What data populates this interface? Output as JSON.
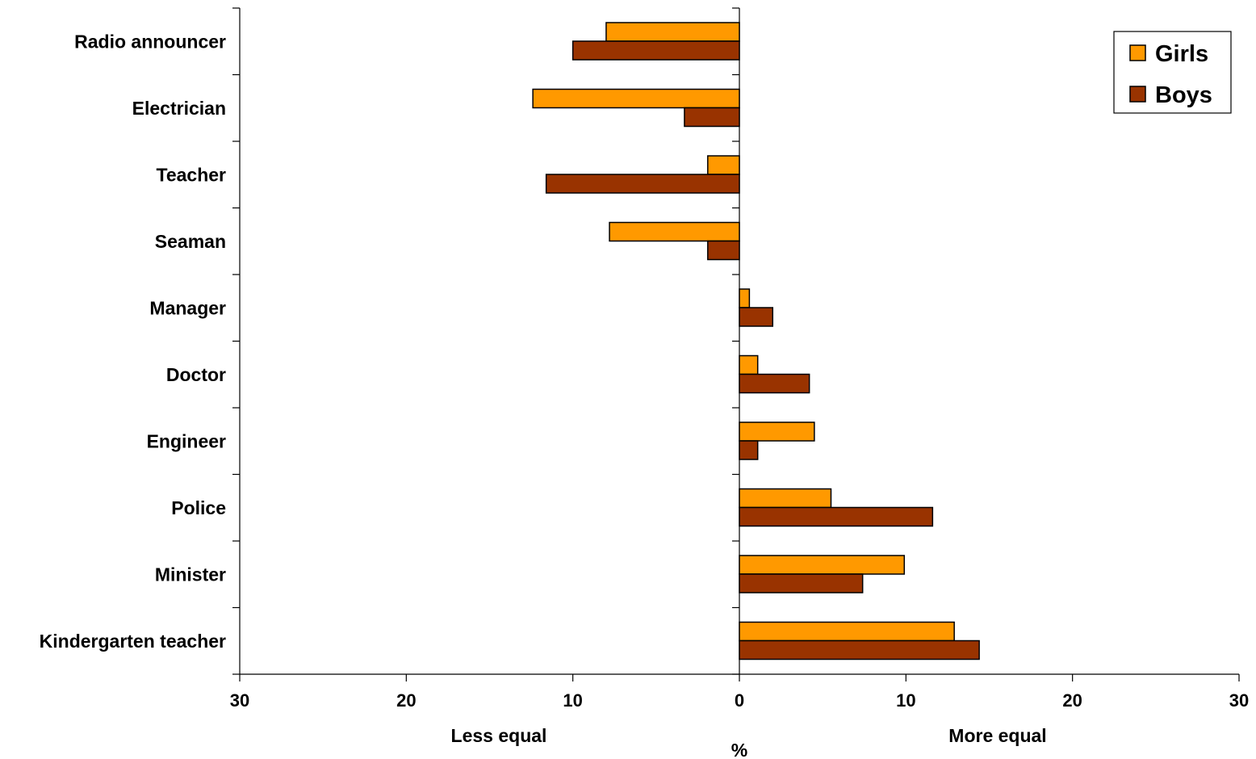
{
  "chart_data": {
    "type": "bar",
    "orientation": "horizontal",
    "categories": [
      "Radio announcer",
      "Electrician",
      "Teacher",
      "Seaman",
      "Manager",
      "Doctor",
      "Engineer",
      "Police",
      "Minister",
      "Kindergarten teacher"
    ],
    "series": [
      {
        "name": "Girls",
        "color": "#FF9900",
        "values": [
          -8,
          -12.4,
          -1.9,
          -7.8,
          0.6,
          1.1,
          4.5,
          5.5,
          9.9,
          12.9
        ]
      },
      {
        "name": "Boys",
        "color": "#993300",
        "values": [
          -10,
          -3.3,
          -11.6,
          -1.9,
          2.0,
          4.2,
          1.1,
          11.6,
          7.4,
          14.4
        ]
      }
    ],
    "xlim": [
      -30,
      30
    ],
    "xticks": [
      -30,
      -20,
      -10,
      0,
      10,
      20,
      30
    ],
    "xtick_labels": [
      "30",
      "20",
      "10",
      "0",
      "10",
      "20",
      "30"
    ],
    "xlabel": "%",
    "left_annotation": "Less equal",
    "right_annotation": "More equal",
    "legend_position": "top-right",
    "grid": false
  }
}
